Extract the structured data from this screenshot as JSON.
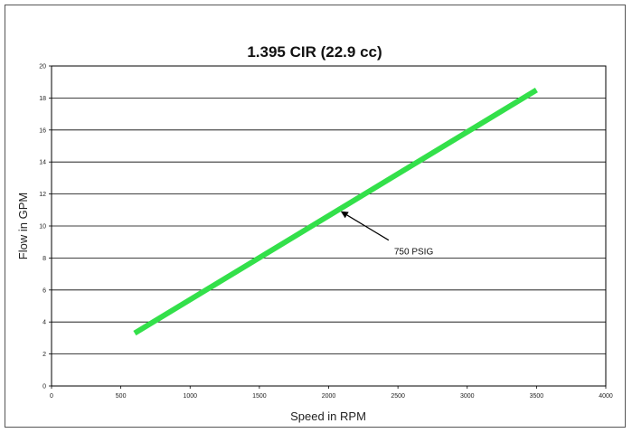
{
  "chart_data": {
    "type": "line",
    "title": "1.395 CIR (22.9 cc)",
    "xlabel": "Speed in RPM",
    "ylabel": "Flow in GPM",
    "xlim": [
      0,
      4000
    ],
    "ylim": [
      0,
      20
    ],
    "xticks": [
      0,
      500,
      1000,
      1500,
      2000,
      2500,
      3000,
      3500,
      4000
    ],
    "yticks": [
      0,
      2,
      4,
      6,
      8,
      10,
      12,
      14,
      16,
      18,
      20
    ],
    "xtick_labels": [
      "0",
      "500",
      "1000",
      "1500",
      "2000",
      "2500",
      "3000",
      "3500",
      "4000"
    ],
    "ytick_labels": [
      "0",
      "2",
      "4",
      "6",
      "8",
      "10",
      "12",
      "14",
      "16",
      "18",
      "20"
    ],
    "grid": true,
    "series": [
      {
        "x": [
          600,
          3500
        ],
        "y": [
          3.3,
          18.5
        ],
        "color": "#33e04a"
      }
    ],
    "annotations": [
      {
        "text": "750 PSIG",
        "point": [
          2080,
          11.0
        ],
        "text_at": [
          2420,
          9.0
        ]
      }
    ]
  }
}
